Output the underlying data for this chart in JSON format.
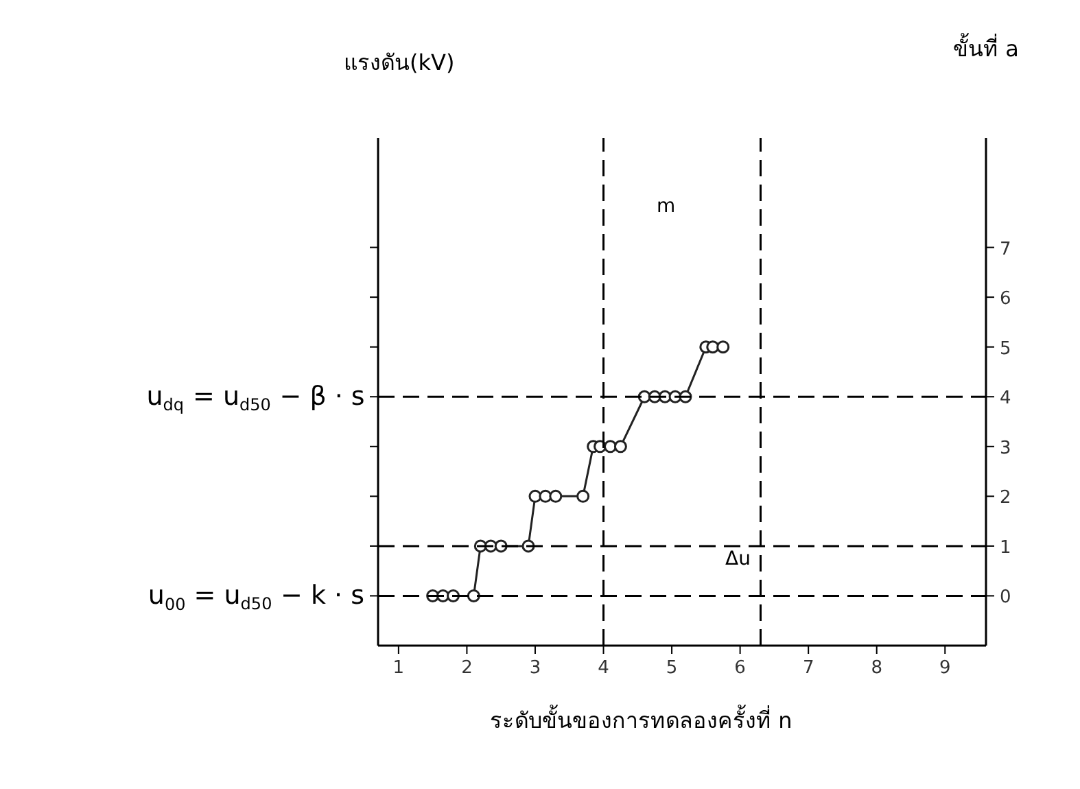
{
  "chart_data": {
    "type": "line",
    "xlabel": "ระดับขั้นของการทดลองครั้งที่ n",
    "ylabel": "แรงดัน(kV)",
    "y2label": "ขั้นที่ a",
    "marker": "circle",
    "grid": false,
    "xlim": [
      0.7,
      9.6
    ],
    "xticks": [
      1,
      2,
      3,
      4,
      5,
      6,
      7,
      8,
      9
    ],
    "ylim": [
      -1,
      9.2
    ],
    "yticks": [
      0,
      1,
      2,
      3,
      4,
      5,
      6,
      7
    ],
    "series": [
      {
        "color": "#222222",
        "x": [
          1.5,
          1.65,
          1.8,
          2.1,
          2.2,
          2.35,
          2.5,
          2.9,
          3.0,
          3.15,
          3.3,
          3.7,
          3.85,
          3.95,
          4.1,
          4.25,
          4.6,
          4.75,
          4.9,
          5.05,
          5.2,
          5.5,
          5.6,
          5.75
        ],
        "values": [
          0,
          0,
          0,
          0,
          1,
          1,
          1,
          1,
          2,
          2,
          2,
          2,
          3,
          3,
          3,
          3,
          4,
          4,
          4,
          4,
          4,
          5,
          5,
          5
        ]
      }
    ],
    "ref_lines": [
      {
        "axis": "y",
        "value": 0,
        "line_style": "dashed",
        "label": "u$_{00}$ = u$_{d50}$ − k · s"
      },
      {
        "axis": "y",
        "value": 1,
        "line_style": "dashed"
      },
      {
        "axis": "y",
        "value": 4,
        "line_style": "dashed",
        "label": "u$_{dq}$ = u$_{d50}$ − β · s"
      },
      {
        "axis": "x",
        "value": 4,
        "line_style": "dashed"
      },
      {
        "axis": "x",
        "value": 6.3,
        "line_style": "dashed"
      }
    ],
    "annotations": [
      "m",
      "Δu"
    ]
  }
}
